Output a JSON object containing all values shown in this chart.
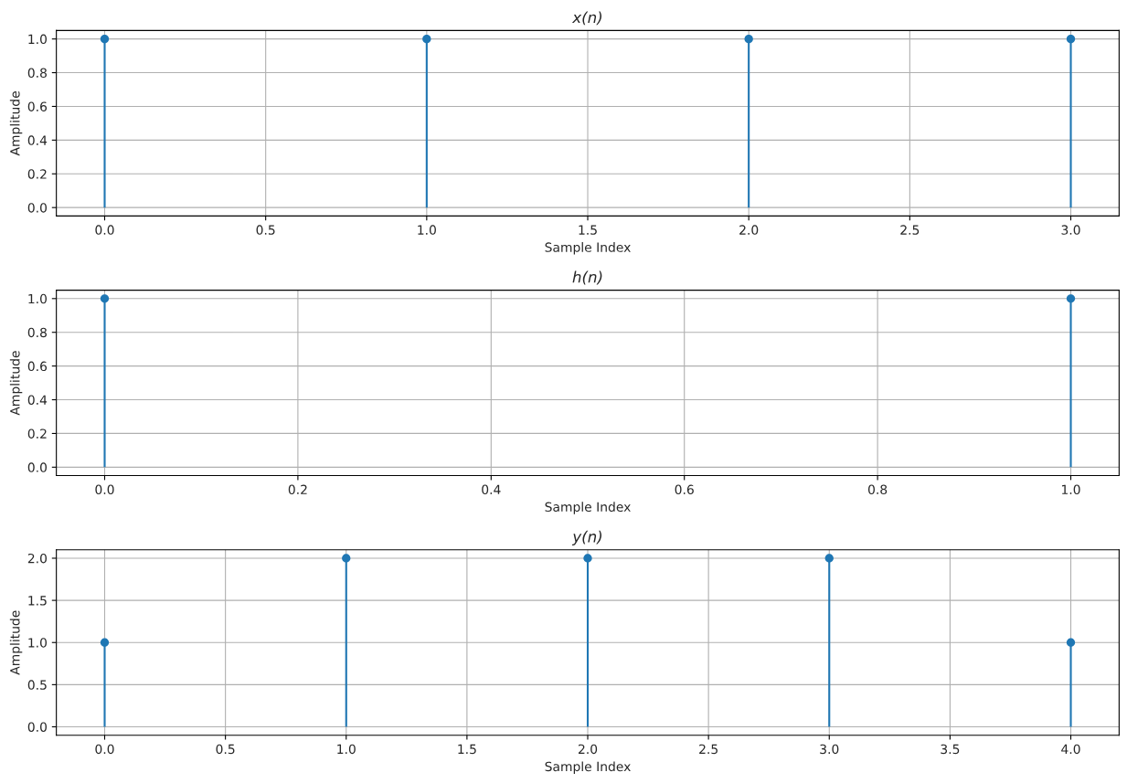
{
  "chart_data": [
    {
      "type": "lollipop",
      "title": "x(n)",
      "xlabel": "Sample Index",
      "ylabel": "Amplitude",
      "x": [
        0,
        1,
        2,
        3
      ],
      "series": [
        {
          "color": "#1f77b4",
          "values": [
            1,
            1,
            1,
            1
          ]
        }
      ],
      "xlim": [
        -0.15,
        3.15
      ],
      "xticks": [
        {
          "value": 0,
          "label": "0.0"
        },
        0.5,
        {
          "value": 1,
          "label": "1.0"
        },
        1.5,
        {
          "value": 2,
          "label": "2.0"
        },
        2.5,
        {
          "value": 3,
          "label": "3.0"
        }
      ],
      "ylim": [
        -0.05,
        1.05
      ],
      "yticks": [
        {
          "value": 0,
          "label": "0.0"
        },
        0.2,
        0.4,
        0.6,
        0.8,
        {
          "value": 1,
          "label": "1.0"
        }
      ],
      "grid": true,
      "marker": "circle"
    },
    {
      "type": "lollipop",
      "title": "h(n)",
      "xlabel": "Sample Index",
      "ylabel": "Amplitude",
      "x": [
        0,
        1
      ],
      "series": [
        {
          "color": "#1f77b4",
          "values": [
            1,
            1
          ]
        }
      ],
      "xlim": [
        -0.05,
        1.05
      ],
      "xticks": [
        {
          "value": 0,
          "label": "0.0"
        },
        0.2,
        0.4,
        0.6,
        0.8,
        {
          "value": 1,
          "label": "1.0"
        }
      ],
      "ylim": [
        -0.05,
        1.05
      ],
      "yticks": [
        {
          "value": 0,
          "label": "0.0"
        },
        0.2,
        0.4,
        0.6,
        0.8,
        {
          "value": 1,
          "label": "1.0"
        }
      ],
      "grid": true,
      "marker": "circle"
    },
    {
      "type": "lollipop",
      "title": "y(n)",
      "xlabel": "Sample Index",
      "ylabel": "Amplitude",
      "x": [
        0,
        1,
        2,
        3,
        4
      ],
      "series": [
        {
          "color": "#1f77b4",
          "values": [
            1,
            2,
            2,
            2,
            1
          ]
        }
      ],
      "xlim": [
        -0.2,
        4.2
      ],
      "xticks": [
        {
          "value": 0,
          "label": "0.0"
        },
        0.5,
        {
          "value": 1,
          "label": "1.0"
        },
        1.5,
        {
          "value": 2,
          "label": "2.0"
        },
        2.5,
        {
          "value": 3,
          "label": "3.0"
        },
        3.5,
        {
          "value": 4,
          "label": "4.0"
        }
      ],
      "ylim": [
        -0.1,
        2.1
      ],
      "yticks": [
        {
          "value": 0,
          "label": "0.0"
        },
        0.5,
        {
          "value": 1,
          "label": "1.0"
        },
        1.5,
        {
          "value": 2,
          "label": "2.0"
        }
      ],
      "grid": true,
      "marker": "circle"
    }
  ]
}
